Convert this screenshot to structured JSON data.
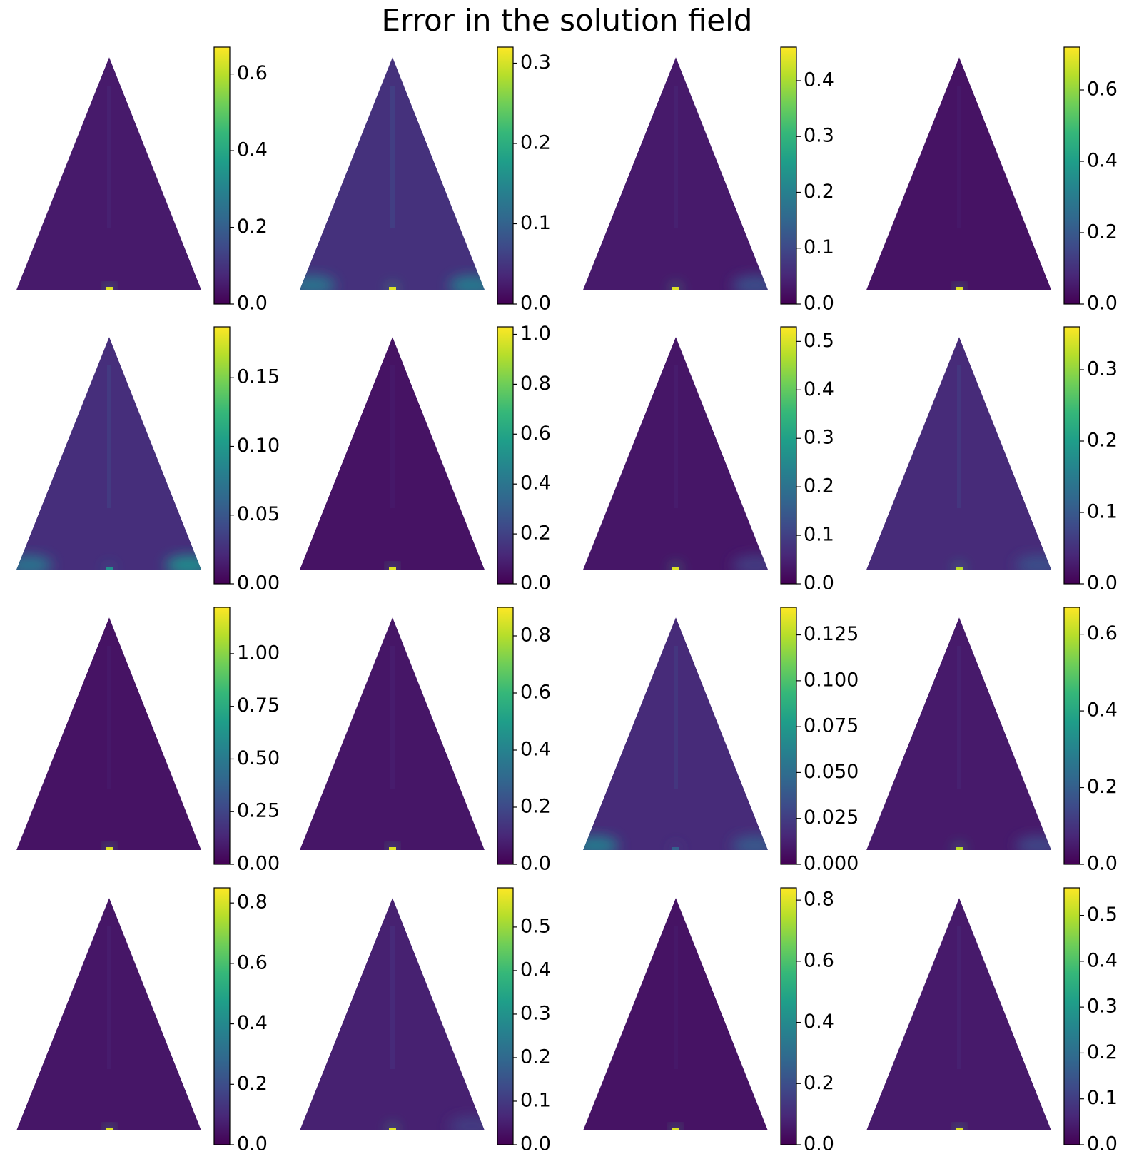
{
  "title": "Error in the solution field",
  "colormap": {
    "name": "viridis",
    "stops": [
      "#440154",
      "#482878",
      "#3e4a89",
      "#31688e",
      "#26828e",
      "#1f9e89",
      "#35b779",
      "#6ece58",
      "#b5de2b",
      "#fde725"
    ]
  },
  "chart_data": [
    {
      "type": "heatmap",
      "shape": "triangle",
      "grid_row": 1,
      "grid_col": 1,
      "vmin": 0,
      "vmax": 0.67,
      "ticks": [
        0.0,
        0.2,
        0.4,
        0.6
      ],
      "tick_labels": [
        "0.0",
        "0.2",
        "0.4",
        "0.6"
      ],
      "bg_level": 0.07,
      "hotspots": [
        {
          "region": "bottom-center",
          "level": 0.95
        }
      ]
    },
    {
      "type": "heatmap",
      "shape": "triangle",
      "grid_row": 1,
      "grid_col": 2,
      "vmin": 0,
      "vmax": 0.32,
      "ticks": [
        0.0,
        0.1,
        0.2,
        0.3
      ],
      "tick_labels": [
        "0.0",
        "0.1",
        "0.2",
        "0.3"
      ],
      "bg_level": 0.14,
      "hotspots": [
        {
          "region": "bottom-left",
          "level": 0.55
        },
        {
          "region": "bottom-right",
          "level": 0.6
        },
        {
          "region": "bottom-center",
          "level": 0.95
        }
      ]
    },
    {
      "type": "heatmap",
      "shape": "triangle",
      "grid_row": 1,
      "grid_col": 3,
      "vmin": 0,
      "vmax": 0.46,
      "ticks": [
        0.0,
        0.1,
        0.2,
        0.3,
        0.4
      ],
      "tick_labels": [
        "0.0",
        "0.1",
        "0.2",
        "0.3",
        "0.4"
      ],
      "bg_level": 0.07,
      "hotspots": [
        {
          "region": "bottom-right",
          "level": 0.35
        },
        {
          "region": "bottom-center",
          "level": 0.95
        }
      ]
    },
    {
      "type": "heatmap",
      "shape": "triangle",
      "grid_row": 1,
      "grid_col": 4,
      "vmin": 0,
      "vmax": 0.72,
      "ticks": [
        0.0,
        0.2,
        0.4,
        0.6
      ],
      "tick_labels": [
        "0.0",
        "0.2",
        "0.4",
        "0.6"
      ],
      "bg_level": 0.05,
      "hotspots": [
        {
          "region": "bottom-center",
          "level": 0.95
        }
      ]
    },
    {
      "type": "heatmap",
      "shape": "triangle",
      "grid_row": 2,
      "grid_col": 1,
      "vmin": 0,
      "vmax": 0.187,
      "ticks": [
        0.0,
        0.05,
        0.1,
        0.15
      ],
      "tick_labels": [
        "0.00",
        "0.05",
        "0.10",
        "0.15"
      ],
      "bg_level": 0.13,
      "hotspots": [
        {
          "region": "bottom-left",
          "level": 0.55
        },
        {
          "region": "bottom-right",
          "level": 0.7
        },
        {
          "region": "bottom-center",
          "level": 0.5
        }
      ]
    },
    {
      "type": "heatmap",
      "shape": "triangle",
      "grid_row": 2,
      "grid_col": 2,
      "vmin": 0,
      "vmax": 1.03,
      "ticks": [
        0.0,
        0.2,
        0.4,
        0.6,
        0.8,
        1.0
      ],
      "tick_labels": [
        "0.0",
        "0.2",
        "0.4",
        "0.6",
        "0.8",
        "1.0"
      ],
      "bg_level": 0.05,
      "hotspots": [
        {
          "region": "bottom-center",
          "level": 0.95
        }
      ]
    },
    {
      "type": "heatmap",
      "shape": "triangle",
      "grid_row": 2,
      "grid_col": 3,
      "vmin": 0,
      "vmax": 0.53,
      "ticks": [
        0.0,
        0.1,
        0.2,
        0.3,
        0.4,
        0.5
      ],
      "tick_labels": [
        "0.0",
        "0.1",
        "0.2",
        "0.3",
        "0.4",
        "0.5"
      ],
      "bg_level": 0.06,
      "hotspots": [
        {
          "region": "bottom-right",
          "level": 0.25
        },
        {
          "region": "bottom-center",
          "level": 0.95
        }
      ]
    },
    {
      "type": "heatmap",
      "shape": "triangle",
      "grid_row": 2,
      "grid_col": 4,
      "vmin": 0,
      "vmax": 0.36,
      "ticks": [
        0.0,
        0.1,
        0.2,
        0.3
      ],
      "tick_labels": [
        "0.0",
        "0.1",
        "0.2",
        "0.3"
      ],
      "bg_level": 0.12,
      "hotspots": [
        {
          "region": "bottom-right",
          "level": 0.35
        },
        {
          "region": "bottom-center",
          "level": 0.9
        }
      ]
    },
    {
      "type": "heatmap",
      "shape": "triangle",
      "grid_row": 3,
      "grid_col": 1,
      "vmin": 0,
      "vmax": 1.22,
      "ticks": [
        0.0,
        0.25,
        0.5,
        0.75,
        1.0
      ],
      "tick_labels": [
        "0.00",
        "0.25",
        "0.50",
        "0.75",
        "1.00"
      ],
      "bg_level": 0.05,
      "hotspots": [
        {
          "region": "bottom-center",
          "level": 0.95
        }
      ]
    },
    {
      "type": "heatmap",
      "shape": "triangle",
      "grid_row": 3,
      "grid_col": 2,
      "vmin": 0,
      "vmax": 0.9,
      "ticks": [
        0.0,
        0.2,
        0.4,
        0.6,
        0.8
      ],
      "tick_labels": [
        "0.0",
        "0.2",
        "0.4",
        "0.6",
        "0.8"
      ],
      "bg_level": 0.06,
      "hotspots": [
        {
          "region": "bottom-center",
          "level": 0.95
        }
      ]
    },
    {
      "type": "heatmap",
      "shape": "triangle",
      "grid_row": 3,
      "grid_col": 3,
      "vmin": 0,
      "vmax": 0.14,
      "ticks": [
        0.0,
        0.025,
        0.05,
        0.075,
        0.1,
        0.125
      ],
      "tick_labels": [
        "0.000",
        "0.025",
        "0.050",
        "0.075",
        "0.100",
        "0.125"
      ],
      "bg_level": 0.12,
      "hotspots": [
        {
          "region": "bottom-left",
          "level": 0.6
        },
        {
          "region": "bottom-right",
          "level": 0.4
        },
        {
          "region": "bottom-center",
          "level": 0.3
        }
      ]
    },
    {
      "type": "heatmap",
      "shape": "triangle",
      "grid_row": 3,
      "grid_col": 4,
      "vmin": 0,
      "vmax": 0.67,
      "ticks": [
        0.0,
        0.2,
        0.4,
        0.6
      ],
      "tick_labels": [
        "0.0",
        "0.2",
        "0.4",
        "0.6"
      ],
      "bg_level": 0.07,
      "hotspots": [
        {
          "region": "bottom-right",
          "level": 0.3
        },
        {
          "region": "bottom-center",
          "level": 0.9
        }
      ]
    },
    {
      "type": "heatmap",
      "shape": "triangle",
      "grid_row": 4,
      "grid_col": 1,
      "vmin": 0,
      "vmax": 0.85,
      "ticks": [
        0.0,
        0.2,
        0.4,
        0.6,
        0.8
      ],
      "tick_labels": [
        "0.0",
        "0.2",
        "0.4",
        "0.6",
        "0.8"
      ],
      "bg_level": 0.06,
      "hotspots": [
        {
          "region": "bottom-center",
          "level": 0.95
        }
      ]
    },
    {
      "type": "heatmap",
      "shape": "triangle",
      "grid_row": 4,
      "grid_col": 2,
      "vmin": 0,
      "vmax": 0.59,
      "ticks": [
        0.0,
        0.1,
        0.2,
        0.3,
        0.4,
        0.5
      ],
      "tick_labels": [
        "0.0",
        "0.1",
        "0.2",
        "0.3",
        "0.4",
        "0.5"
      ],
      "bg_level": 0.09,
      "hotspots": [
        {
          "region": "bottom-right",
          "level": 0.25
        },
        {
          "region": "bottom-center",
          "level": 0.95
        }
      ]
    },
    {
      "type": "heatmap",
      "shape": "triangle",
      "grid_row": 4,
      "grid_col": 3,
      "vmin": 0,
      "vmax": 0.84,
      "ticks": [
        0.0,
        0.2,
        0.4,
        0.6,
        0.8
      ],
      "tick_labels": [
        "0.0",
        "0.2",
        "0.4",
        "0.6",
        "0.8"
      ],
      "bg_level": 0.05,
      "hotspots": [
        {
          "region": "bottom-center",
          "level": 0.95
        }
      ]
    },
    {
      "type": "heatmap",
      "shape": "triangle",
      "grid_row": 4,
      "grid_col": 4,
      "vmin": 0,
      "vmax": 0.56,
      "ticks": [
        0.0,
        0.1,
        0.2,
        0.3,
        0.4,
        0.5
      ],
      "tick_labels": [
        "0.0",
        "0.1",
        "0.2",
        "0.3",
        "0.4",
        "0.5"
      ],
      "bg_level": 0.07,
      "hotspots": [
        {
          "region": "bottom-center",
          "level": 0.95
        }
      ]
    }
  ]
}
